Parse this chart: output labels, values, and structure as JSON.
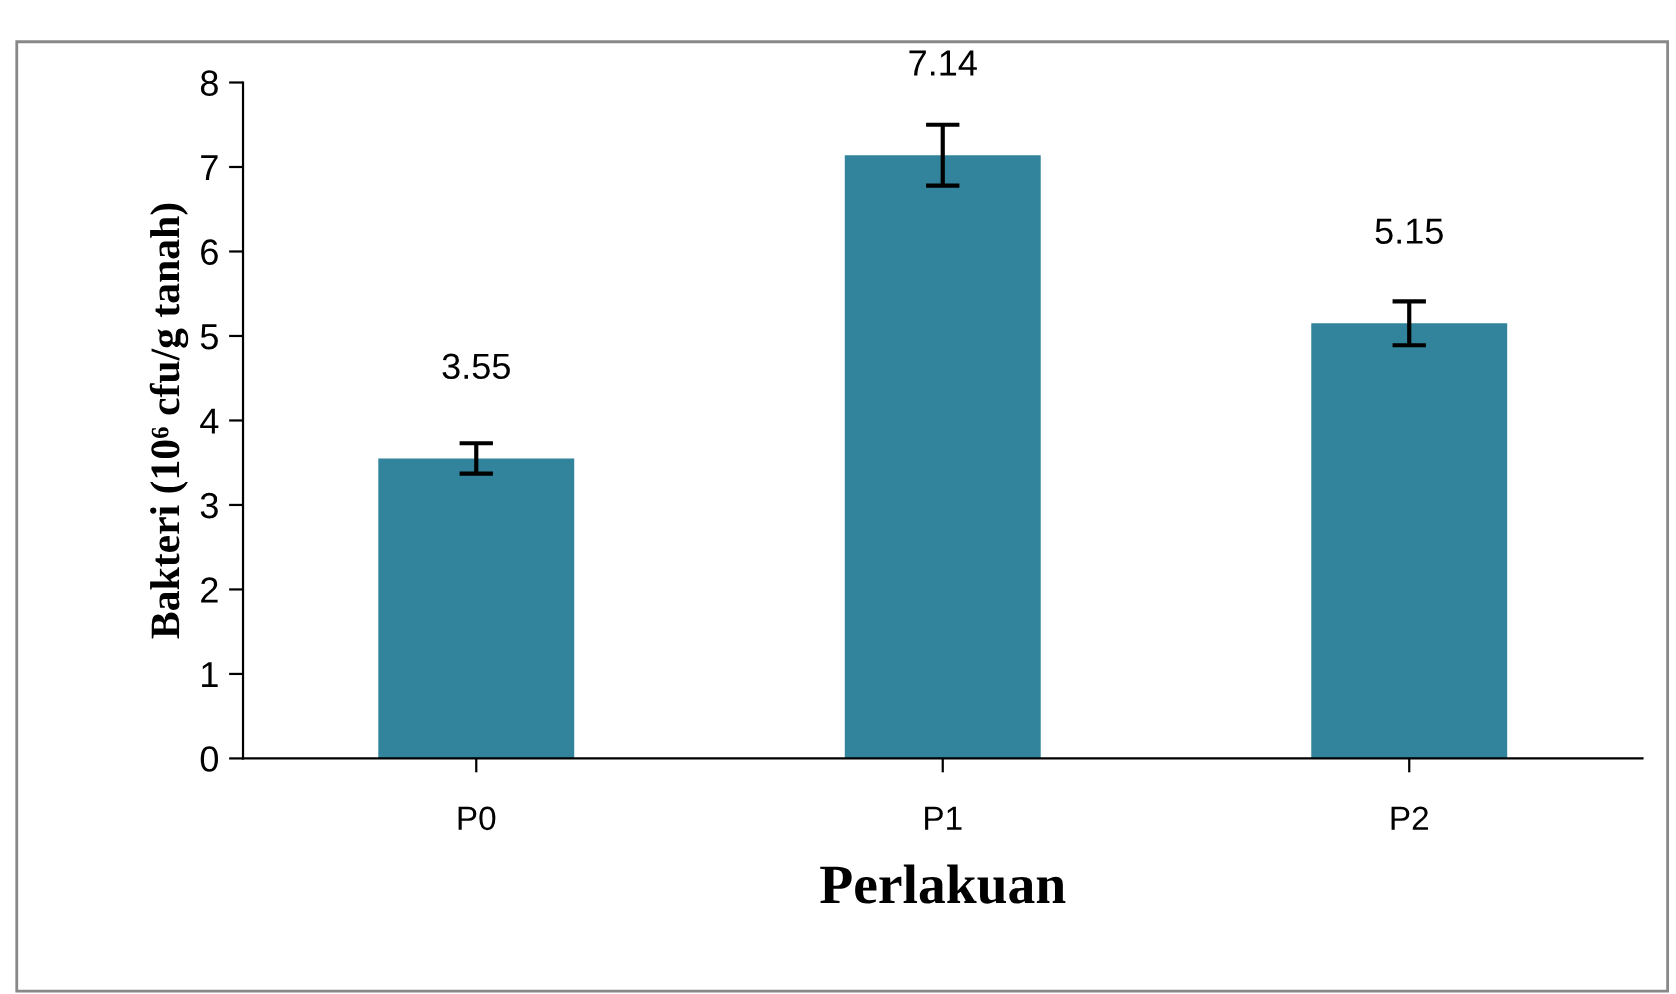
{
  "chart_data": {
    "type": "bar",
    "xlabel": "Perlakuan",
    "ylabel": "Bakteri (10⁶ cfu/g tanah)",
    "categories": [
      "P0",
      "P1",
      "P2"
    ],
    "values": [
      3.55,
      7.14,
      5.15
    ],
    "errors": [
      0.18,
      0.36,
      0.26
    ],
    "color": "#31849b",
    "ylim": [
      0,
      8
    ],
    "yticks": [
      0,
      1,
      2,
      3,
      4,
      5,
      6,
      7,
      8
    ],
    "data_labels": true,
    "grid": false,
    "legend": false
  }
}
